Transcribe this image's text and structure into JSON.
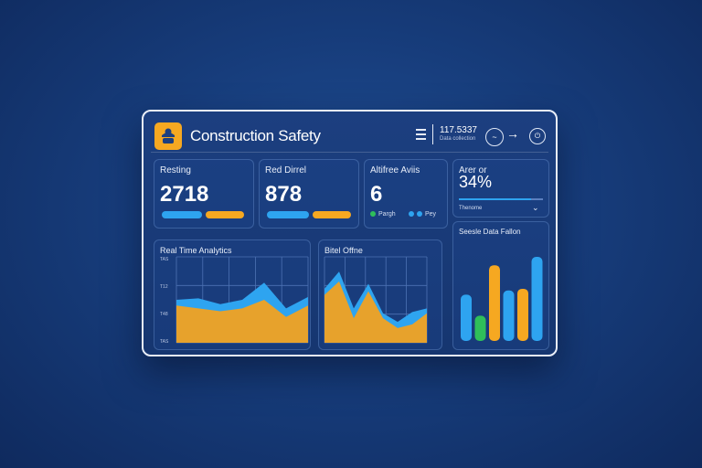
{
  "header": {
    "title": "Construction Safety",
    "counter": "117.5337",
    "counter_sub": "Data collection",
    "wave_icon": "~",
    "arrow": "→",
    "power_icon": "⏻"
  },
  "cards": [
    {
      "label": "Resting",
      "value": "2718"
    },
    {
      "label": "Red Dirrel",
      "value": "878"
    },
    {
      "label": "Altifree Aviis",
      "value": "6",
      "legend": [
        "Pargh",
        "Pey"
      ]
    },
    {
      "label": "Arer or",
      "value": "34%",
      "sub": "Thenome",
      "progress_percent": 86
    }
  ],
  "panels": {
    "realtime_title": "Real Time Analytics",
    "realtime_ticks": [
      "TAS",
      "T12",
      "T48",
      "TAS"
    ],
    "bitrel_title": "Bitel Offne",
    "bars_title": "Seesle Data Fallon"
  },
  "chart_data": [
    {
      "type": "area",
      "title": "Real Time Analytics",
      "y_ticks": [
        "TAS",
        "T12",
        "T48",
        "TAS"
      ],
      "x": [
        0,
        1,
        2,
        3,
        4,
        5,
        6
      ],
      "series": [
        {
          "name": "blue",
          "color": "#2ea4f0",
          "values": [
            30,
            31,
            27,
            30,
            42,
            24,
            32
          ]
        },
        {
          "name": "orange",
          "color": "#e7a22c",
          "values": [
            26,
            24,
            22,
            24,
            30,
            18,
            26
          ]
        }
      ],
      "ylim": [
        0,
        60
      ]
    },
    {
      "type": "area",
      "title": "Bitel Offne",
      "x": [
        0,
        1,
        2,
        3,
        4,
        5,
        6,
        7
      ],
      "series": [
        {
          "name": "blue",
          "color": "#2ea4f0",
          "values": [
            44,
            58,
            28,
            48,
            24,
            17,
            25,
            28
          ]
        },
        {
          "name": "orange",
          "color": "#e7a22c",
          "values": [
            39,
            50,
            20,
            42,
            20,
            12,
            15,
            24
          ]
        }
      ],
      "ylim": [
        0,
        70
      ]
    },
    {
      "type": "bar",
      "title": "Seesle Data Fallon",
      "categories": [
        "1",
        "2",
        "3",
        "4",
        "5",
        "6"
      ],
      "values": [
        55,
        30,
        90,
        60,
        62,
        100
      ],
      "colors": [
        "#2ea4f0",
        "#2fbf5a",
        "#f6a821",
        "#2ea4f0",
        "#f6a821",
        "#2ea4f0"
      ],
      "ylim": [
        0,
        100
      ]
    }
  ],
  "colors": {
    "accent": "#f6a821",
    "blue": "#2ea4f0",
    "green": "#2fbf5a"
  }
}
